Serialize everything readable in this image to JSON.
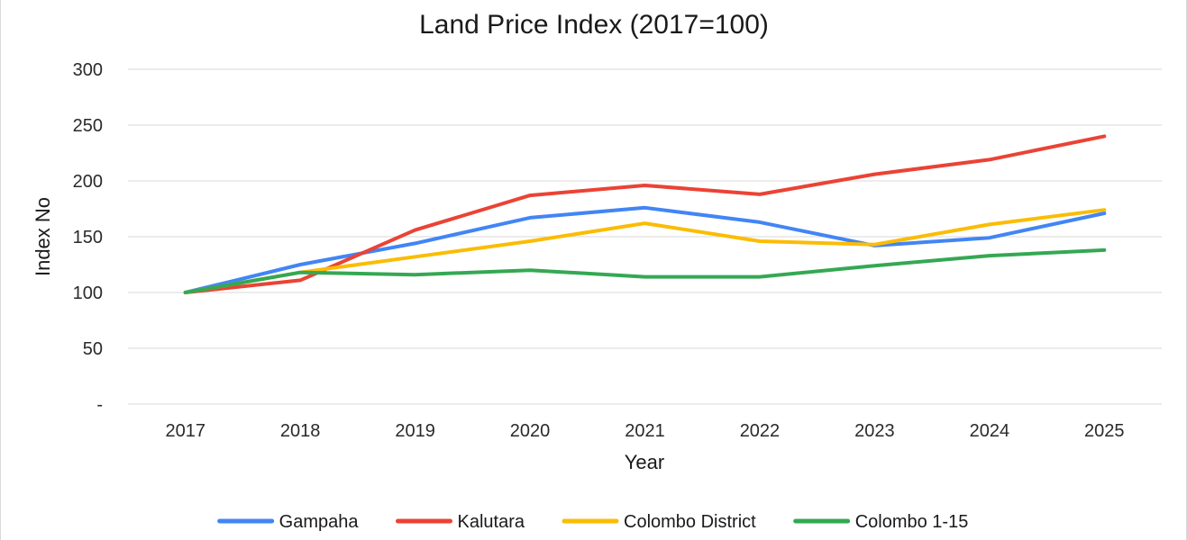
{
  "chart_data": {
    "type": "line",
    "title": "Land Price Index (2017=100)",
    "xlabel": "Year",
    "ylabel": "Index No",
    "categories": [
      "2017",
      "2018",
      "2019",
      "2020",
      "2021",
      "2022",
      "2023",
      "2024",
      "2025"
    ],
    "ylim": [
      0,
      300
    ],
    "yticks": [
      0,
      50,
      100,
      150,
      200,
      250,
      300
    ],
    "ytick_labels": [
      "-",
      "50",
      "100",
      "150",
      "200",
      "250",
      "300"
    ],
    "grid": true,
    "legend_position": "bottom",
    "series": [
      {
        "name": "Gampaha",
        "color": "#4285f4",
        "values": [
          100,
          125,
          144,
          167,
          176,
          163,
          142,
          149,
          171
        ]
      },
      {
        "name": "Kalutara",
        "color": "#ea4335",
        "values": [
          100,
          111,
          156,
          187,
          196,
          188,
          206,
          219,
          240
        ]
      },
      {
        "name": "Colombo District",
        "color": "#fbbc04",
        "values": [
          100,
          118,
          132,
          146,
          162,
          146,
          143,
          161,
          174
        ]
      },
      {
        "name": "Colombo 1-15",
        "color": "#34a853",
        "values": [
          100,
          118,
          116,
          120,
          114,
          114,
          124,
          133,
          138
        ]
      }
    ]
  }
}
